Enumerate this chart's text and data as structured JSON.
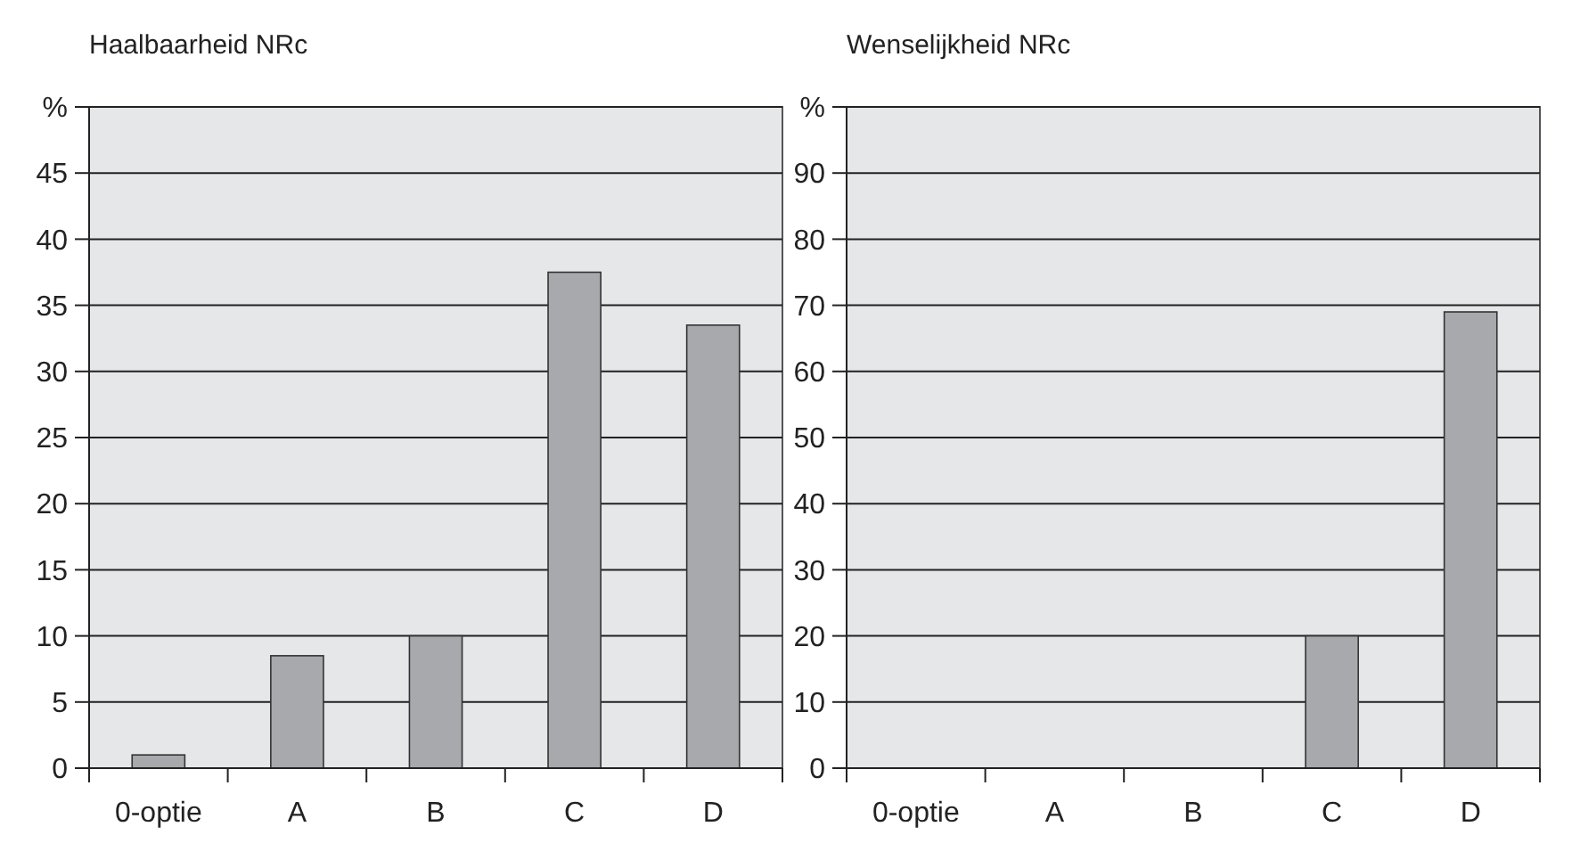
{
  "chart_data": [
    {
      "type": "bar",
      "title": "Haalbaarheid NRc",
      "categories": [
        "0-optie",
        "A",
        "B",
        "C",
        "D"
      ],
      "values": [
        1,
        8.5,
        10,
        37.5,
        33.5
      ],
      "color": "#a8a9ad",
      "ylim": [
        0,
        50
      ],
      "yticks": [
        0,
        5,
        10,
        15,
        20,
        25,
        30,
        35,
        40,
        45,
        {
          "value": 50,
          "label": "%"
        }
      ],
      "grid": "y"
    },
    {
      "type": "bar",
      "title": "Wenselijkheid NRc",
      "categories": [
        "0-optie",
        "A",
        "B",
        "C",
        "D"
      ],
      "values": [
        0,
        0,
        0,
        20,
        69
      ],
      "color": "#a8a9ad",
      "ylim": [
        0,
        100
      ],
      "yticks": [
        0,
        10,
        20,
        30,
        40,
        50,
        60,
        70,
        80,
        90,
        {
          "value": 100,
          "label": "%"
        }
      ],
      "grid": "y"
    }
  ]
}
